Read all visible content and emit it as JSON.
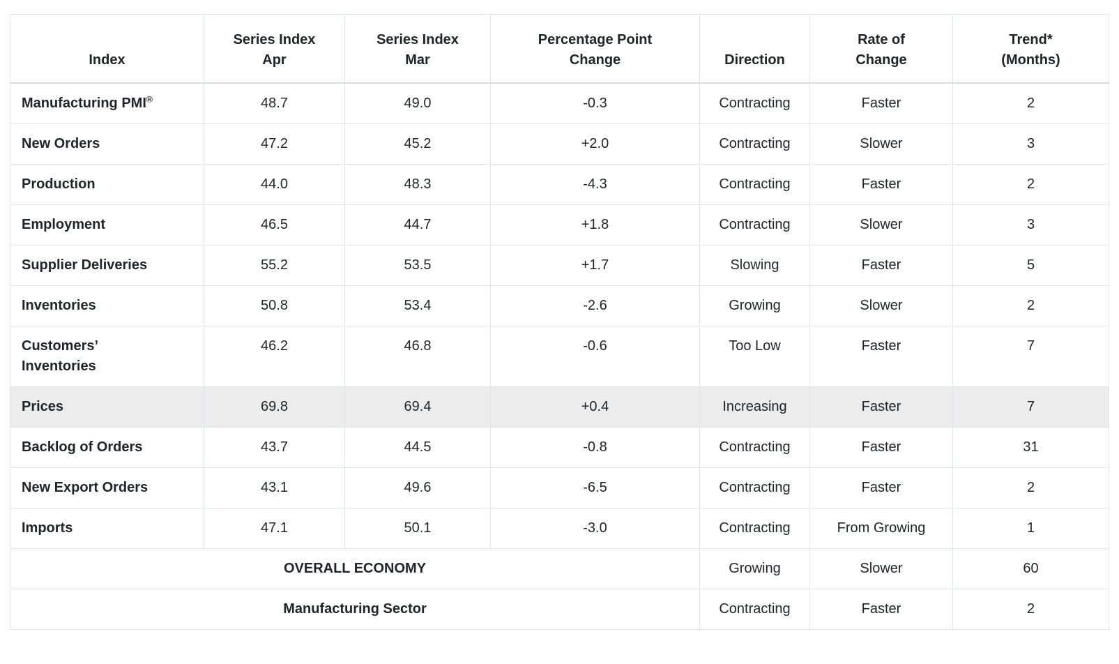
{
  "chart_data": {
    "type": "table",
    "columns": [
      "Index",
      "Series Index Apr",
      "Series Index Mar",
      "Percentage Point Change",
      "Direction",
      "Rate of Change",
      "Trend* (Months)"
    ],
    "columns_display": [
      "Index",
      "Series Index\nApr",
      "Series Index\nMar",
      "Percentage Point\nChange",
      "Direction",
      "Rate of\nChange",
      "Trend*\n(Months)"
    ],
    "rows": [
      [
        "Manufacturing PMI®",
        "48.7",
        "49.0",
        "-0.3",
        "Contracting",
        "Faster",
        "2"
      ],
      [
        "New Orders",
        "47.2",
        "45.2",
        "+2.0",
        "Contracting",
        "Slower",
        "3"
      ],
      [
        "Production",
        "44.0",
        "48.3",
        "-4.3",
        "Contracting",
        "Faster",
        "2"
      ],
      [
        "Employment",
        "46.5",
        "44.7",
        "+1.8",
        "Contracting",
        "Slower",
        "3"
      ],
      [
        "Supplier Deliveries",
        "55.2",
        "53.5",
        "+1.7",
        "Slowing",
        "Faster",
        "5"
      ],
      [
        "Inventories",
        "50.8",
        "53.4",
        "-2.6",
        "Growing",
        "Slower",
        "2"
      ],
      [
        "Customers’\nInventories",
        "46.2",
        "46.8",
        "-0.6",
        "Too Low",
        "Faster",
        "7"
      ],
      [
        "Prices",
        "69.8",
        "69.4",
        "+0.4",
        "Increasing",
        "Faster",
        "7"
      ],
      [
        "Backlog of Orders",
        "43.7",
        "44.5",
        "-0.8",
        "Contracting",
        "Faster",
        "31"
      ],
      [
        "New Export Orders",
        "43.1",
        "49.6",
        "-6.5",
        "Contracting",
        "Faster",
        "2"
      ],
      [
        "Imports",
        "47.1",
        "50.1",
        "-3.0",
        "Contracting",
        "From Growing",
        "1"
      ]
    ],
    "highlight_row_index": 7,
    "summary_rows": [
      [
        "OVERALL ECONOMY",
        "Growing",
        "Slower",
        "60"
      ],
      [
        "Manufacturing Sector",
        "Contracting",
        "Faster",
        "2"
      ]
    ],
    "colors": {
      "text": "#212529",
      "border": "#e1e4e8",
      "highlight_row_bg": "#ececec"
    }
  }
}
